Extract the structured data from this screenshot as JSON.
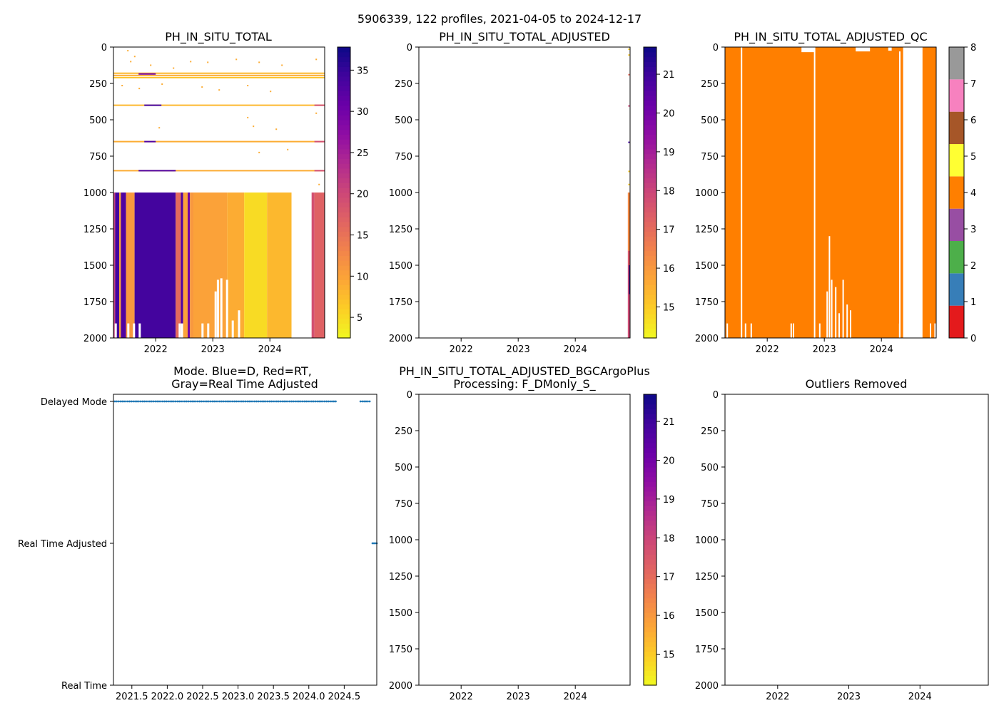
{
  "figure": {
    "suptitle": "5906339, 122 profiles, 2021-04-05 to 2024-12-17"
  },
  "chart_data": [
    {
      "id": "p1",
      "type": "heatmap",
      "title": "PH_IN_SITU_TOTAL",
      "xlim": [
        2021.26,
        2024.96
      ],
      "ylim": [
        2000,
        0
      ],
      "xticks": [
        2022,
        2023,
        2024
      ],
      "xtick_labels": [
        "2022",
        "2023",
        "2024"
      ],
      "yticks": [
        0,
        250,
        500,
        750,
        1000,
        1250,
        1500,
        1750,
        2000
      ],
      "ytick_labels": [
        "0",
        "250",
        "500",
        "750",
        "1000",
        "1250",
        "1500",
        "1750",
        "2000"
      ],
      "colormap": "plasma_r",
      "colorbar": {
        "min": 2.5,
        "max": 37.8,
        "ticks": [
          5,
          10,
          15,
          20,
          25,
          30,
          35
        ],
        "tick_labels": [
          "5",
          "10",
          "15",
          "20",
          "25",
          "30",
          "35"
        ]
      },
      "deep_blocks": [
        {
          "x0": 2021.26,
          "x1": 2021.29,
          "value": 21
        },
        {
          "x0": 2021.29,
          "x1": 2021.36,
          "value": 34
        },
        {
          "x0": 2021.36,
          "x1": 2021.39,
          "value": 10
        },
        {
          "x0": 2021.39,
          "x1": 2021.48,
          "value": 33
        },
        {
          "x0": 2021.48,
          "x1": 2021.63,
          "value": 11
        },
        {
          "x0": 2021.63,
          "x1": 2022.35,
          "value": 34
        },
        {
          "x0": 2022.35,
          "x1": 2022.44,
          "value": 16
        },
        {
          "x0": 2022.44,
          "x1": 2022.48,
          "value": 33
        },
        {
          "x0": 2022.48,
          "x1": 2022.56,
          "value": 10
        },
        {
          "x0": 2022.56,
          "x1": 2022.6,
          "value": 30
        },
        {
          "x0": 2022.6,
          "x1": 2022.66,
          "value": 11
        },
        {
          "x0": 2022.66,
          "x1": 2023.25,
          "value": 10
        },
        {
          "x0": 2023.25,
          "x1": 2023.55,
          "value": 9
        },
        {
          "x0": 2023.55,
          "x1": 2023.95,
          "value": 5
        },
        {
          "x0": 2023.95,
          "x1": 2024.38,
          "value": 8
        },
        {
          "x0": 2024.73,
          "x1": 2024.78,
          "value": 19
        },
        {
          "x0": 2024.78,
          "x1": 2024.96,
          "value": 17
        }
      ],
      "deep_gaps": [
        {
          "x": 2021.3,
          "top": 1900,
          "bottom": 2000
        },
        {
          "x": 2021.52,
          "top": 1900,
          "bottom": 2000
        },
        {
          "x": 2021.62,
          "top": 1900,
          "bottom": 2000
        },
        {
          "x": 2021.72,
          "top": 1900,
          "bottom": 2000
        },
        {
          "x": 2022.42,
          "top": 1900,
          "bottom": 2000
        },
        {
          "x": 2022.46,
          "top": 1900,
          "bottom": 2000
        },
        {
          "x": 2022.82,
          "top": 1900,
          "bottom": 2000
        },
        {
          "x": 2022.92,
          "top": 1900,
          "bottom": 2000
        },
        {
          "x": 2023.05,
          "top": 1680,
          "bottom": 2000
        },
        {
          "x": 2023.09,
          "top": 1600,
          "bottom": 2000
        },
        {
          "x": 2023.15,
          "top": 1590,
          "bottom": 2000
        },
        {
          "x": 2023.25,
          "top": 1600,
          "bottom": 2000
        },
        {
          "x": 2023.35,
          "top": 1880,
          "bottom": 2000
        },
        {
          "x": 2023.46,
          "top": 1810,
          "bottom": 2000
        }
      ],
      "surface_gap": {
        "x0": 2024.38,
        "x1": 2024.73,
        "top": 1000,
        "bottom": 2000
      },
      "bands": [
        {
          "depth": 180,
          "value": 8
        },
        {
          "depth": 195,
          "value": 9
        },
        {
          "depth": 210,
          "value": 7
        },
        {
          "depth": 400,
          "value": 8
        },
        {
          "depth": 650,
          "value": 9
        },
        {
          "depth": 850,
          "value": 9
        }
      ],
      "band_highlights": [
        {
          "depth": 185,
          "x0": 2021.7,
          "x1": 2022.0,
          "value": 30
        },
        {
          "depth": 400,
          "x0": 2021.8,
          "x1": 2022.1,
          "value": 34
        },
        {
          "depth": 650,
          "x0": 2021.8,
          "x1": 2022.0,
          "value": 33
        },
        {
          "depth": 850,
          "x0": 2021.7,
          "x1": 2022.35,
          "value": 33
        },
        {
          "depth": 400,
          "x0": 2024.78,
          "x1": 2024.96,
          "value": 19
        },
        {
          "depth": 650,
          "x0": 2024.78,
          "x1": 2024.96,
          "value": 19
        },
        {
          "depth": 850,
          "x0": 2024.78,
          "x1": 2024.96,
          "value": 19
        }
      ],
      "scatter_points": [
        {
          "x": 2021.5,
          "y": 20
        },
        {
          "x": 2021.62,
          "y": 60
        },
        {
          "x": 2021.55,
          "y": 95
        },
        {
          "x": 2021.9,
          "y": 120
        },
        {
          "x": 2022.6,
          "y": 95
        },
        {
          "x": 2022.3,
          "y": 140
        },
        {
          "x": 2022.9,
          "y": 100
        },
        {
          "x": 2023.4,
          "y": 80
        },
        {
          "x": 2023.8,
          "y": 100
        },
        {
          "x": 2024.2,
          "y": 120
        },
        {
          "x": 2021.4,
          "y": 260
        },
        {
          "x": 2021.7,
          "y": 280
        },
        {
          "x": 2022.1,
          "y": 250
        },
        {
          "x": 2022.8,
          "y": 270
        },
        {
          "x": 2023.1,
          "y": 290
        },
        {
          "x": 2023.6,
          "y": 260
        },
        {
          "x": 2024.0,
          "y": 300
        },
        {
          "x": 2024.8,
          "y": 80
        },
        {
          "x": 2024.8,
          "y": 450
        },
        {
          "x": 2023.6,
          "y": 480
        },
        {
          "x": 2022.05,
          "y": 550
        },
        {
          "x": 2024.1,
          "y": 560
        },
        {
          "x": 2023.7,
          "y": 540
        },
        {
          "x": 2024.3,
          "y": 700
        },
        {
          "x": 2023.8,
          "y": 720
        },
        {
          "x": 2024.85,
          "y": 940
        }
      ]
    },
    {
      "id": "p2",
      "type": "heatmap",
      "title": "PH_IN_SITU_TOTAL_ADJUSTED",
      "xlim": [
        2021.26,
        2024.96
      ],
      "ylim": [
        2000,
        0
      ],
      "xticks": [
        2022,
        2023,
        2024
      ],
      "xtick_labels": [
        "2022",
        "2023",
        "2024"
      ],
      "yticks": [
        0,
        250,
        500,
        750,
        1000,
        1250,
        1500,
        1750,
        2000
      ],
      "ytick_labels": [
        "0",
        "250",
        "500",
        "750",
        "1000",
        "1250",
        "1500",
        "1750",
        "2000"
      ],
      "colormap": "plasma_r",
      "colorbar": {
        "min": 14.2,
        "max": 21.7,
        "ticks": [
          15,
          16,
          17,
          18,
          19,
          20,
          21
        ],
        "tick_labels": [
          "15",
          "16",
          "17",
          "18",
          "19",
          "20",
          "21"
        ]
      },
      "columns": [
        {
          "x0": 2024.92,
          "x1": 2024.96,
          "top": 1000,
          "bottom": 1400,
          "value": 16.3
        },
        {
          "x0": 2024.92,
          "x1": 2024.96,
          "top": 1400,
          "bottom": 1500,
          "value": 17.5
        },
        {
          "x0": 2024.94,
          "x1": 2024.96,
          "top": 1500,
          "bottom": 1700,
          "value": 21.5
        },
        {
          "x0": 2024.92,
          "x1": 2024.94,
          "top": 1500,
          "bottom": 2000,
          "value": 17.8
        },
        {
          "x0": 2024.94,
          "x1": 2024.96,
          "top": 1700,
          "bottom": 2000,
          "value": 18
        }
      ],
      "scatter_points": [
        {
          "x": 2024.94,
          "y": 10,
          "value": 15
        },
        {
          "x": 2024.94,
          "y": 50,
          "value": 15
        },
        {
          "x": 2024.94,
          "y": 185,
          "value": 17
        },
        {
          "x": 2024.94,
          "y": 400,
          "value": 18
        },
        {
          "x": 2024.94,
          "y": 650,
          "value": 21
        },
        {
          "x": 2024.94,
          "y": 850,
          "value": 15
        },
        {
          "x": 2024.94,
          "y": 940,
          "value": 15
        }
      ]
    },
    {
      "id": "p3",
      "type": "heatmap",
      "title": "PH_IN_SITU_TOTAL_ADJUSTED_QC",
      "xlim": [
        2021.26,
        2024.96
      ],
      "ylim": [
        2000,
        0
      ],
      "xticks": [
        2022,
        2023,
        2024
      ],
      "xtick_labels": [
        "2022",
        "2023",
        "2024"
      ],
      "yticks": [
        0,
        250,
        500,
        750,
        1000,
        1250,
        1500,
        1750,
        2000
      ],
      "ytick_labels": [
        "0",
        "250",
        "500",
        "750",
        "1000",
        "1250",
        "1500",
        "1750",
        "2000"
      ],
      "fill_value": 4,
      "fill_x0": 2021.26,
      "fill_x1": 2024.96,
      "gaps": [
        {
          "x": 2021.55,
          "top": 0,
          "bottom": 2000
        },
        {
          "x": 2022.83,
          "top": 0,
          "bottom": 2000
        },
        {
          "x": 2021.3,
          "top": 1900,
          "bottom": 2000
        },
        {
          "x": 2021.62,
          "top": 1900,
          "bottom": 2000
        },
        {
          "x": 2021.72,
          "top": 1900,
          "bottom": 2000
        },
        {
          "x": 2022.42,
          "top": 1900,
          "bottom": 2000
        },
        {
          "x": 2022.46,
          "top": 1900,
          "bottom": 2000
        },
        {
          "x": 2022.92,
          "top": 1900,
          "bottom": 2000
        },
        {
          "x": 2023.05,
          "top": 1680,
          "bottom": 2000
        },
        {
          "x": 2023.09,
          "top": 1300,
          "bottom": 2000
        },
        {
          "x": 2023.13,
          "top": 1600,
          "bottom": 2000
        },
        {
          "x": 2023.2,
          "top": 1650,
          "bottom": 2000
        },
        {
          "x": 2023.26,
          "top": 1830,
          "bottom": 2000
        },
        {
          "x": 2023.33,
          "top": 1600,
          "bottom": 2000
        },
        {
          "x": 2023.4,
          "top": 1770,
          "bottom": 2000
        },
        {
          "x": 2023.46,
          "top": 1810,
          "bottom": 2000
        },
        {
          "x": 2024.32,
          "top": 1900,
          "bottom": 2000
        },
        {
          "x": 2024.86,
          "top": 1900,
          "bottom": 2000
        },
        {
          "x": 2024.94,
          "top": 1900,
          "bottom": 2000
        }
      ],
      "gap_blocks": [
        {
          "x0": 2024.38,
          "x1": 2024.72,
          "top": 0,
          "bottom": 2000
        },
        {
          "x0": 2024.31,
          "x1": 2024.33,
          "top": 30,
          "bottom": 2000
        }
      ],
      "top_notches": [
        {
          "x0": 2022.6,
          "x1": 2022.82,
          "depth": 35
        },
        {
          "x0": 2023.55,
          "x1": 2023.8,
          "depth": 30
        },
        {
          "x0": 2024.12,
          "x1": 2024.18,
          "depth": 25
        }
      ],
      "colorbar": {
        "type": "discrete",
        "colors": [
          "#e41a1c",
          "#377eb8",
          "#4daf4a",
          "#984ea3",
          "#ff7f00",
          "#ffff33",
          "#a65628",
          "#f781bf",
          "#999999"
        ],
        "ticks": [
          0,
          1,
          2,
          3,
          4,
          5,
          6,
          7,
          8
        ],
        "tick_labels": [
          "0",
          "1",
          "2",
          "3",
          "4",
          "5",
          "6",
          "7",
          "8"
        ]
      }
    },
    {
      "id": "p4",
      "type": "scatter",
      "title": "Mode. Blue=D, Red=RT,\nGray=Real Time Adjusted",
      "title_lines": [
        "Mode. Blue=D, Red=RT,",
        "Gray=Real Time Adjusted"
      ],
      "xlim": [
        2021.24,
        2024.96
      ],
      "ylim": [
        0,
        2
      ],
      "xticks": [
        2021.5,
        2022.0,
        2022.5,
        2023.0,
        2023.5,
        2024.0,
        2024.5
      ],
      "xtick_labels": [
        "2021.5",
        "2022.0",
        "2022.5",
        "2023.0",
        "2023.5",
        "2024.0",
        "2024.5"
      ],
      "yticks": [
        0,
        1,
        2
      ],
      "ytick_labels": [
        "Real Time",
        "Real Time Adjusted",
        "Delayed Mode"
      ],
      "series": [
        {
          "name": "Delayed Mode",
          "y": 2,
          "x_start": 2021.26,
          "x_end": 2024.38,
          "step": 0.026
        },
        {
          "name": "Delayed Mode (late)",
          "y": 2,
          "x_start": 2024.73,
          "x_end": 2024.86,
          "step": 0.026
        },
        {
          "name": "Real Time Adjusted",
          "y": 1,
          "x_start": 2024.9,
          "x_end": 2024.96,
          "step": 0.02
        }
      ],
      "marker_color": "#1f77b4"
    },
    {
      "id": "p5",
      "type": "heatmap",
      "title": "PH_IN_SITU_TOTAL_ADJUSTED_BGCArgoPlus\nProcessing: F_DMonly_S_",
      "title_lines": [
        "PH_IN_SITU_TOTAL_ADJUSTED_BGCArgoPlus",
        "Processing: F_DMonly_S_"
      ],
      "xlim": [
        2021.26,
        2024.96
      ],
      "ylim": [
        2000,
        0
      ],
      "xticks": [
        2022,
        2023,
        2024
      ],
      "xtick_labels": [
        "2022",
        "2023",
        "2024"
      ],
      "yticks": [
        0,
        250,
        500,
        750,
        1000,
        1250,
        1500,
        1750,
        2000
      ],
      "ytick_labels": [
        "0",
        "250",
        "500",
        "750",
        "1000",
        "1250",
        "1500",
        "1750",
        "2000"
      ],
      "colormap": "plasma_r",
      "colorbar": {
        "min": 14.2,
        "max": 21.7,
        "ticks": [
          15,
          16,
          17,
          18,
          19,
          20,
          21
        ],
        "tick_labels": [
          "15",
          "16",
          "17",
          "18",
          "19",
          "20",
          "21"
        ]
      }
    },
    {
      "id": "p6",
      "type": "heatmap",
      "title": "Outliers Removed",
      "xlim": [
        2021.26,
        2024.96
      ],
      "ylim": [
        2000,
        0
      ],
      "xticks": [
        2022,
        2023,
        2024
      ],
      "xtick_labels": [
        "2022",
        "2023",
        "2024"
      ],
      "yticks": [
        0,
        250,
        500,
        750,
        1000,
        1250,
        1500,
        1750,
        2000
      ],
      "ytick_labels": [
        "0",
        "250",
        "500",
        "750",
        "1000",
        "1250",
        "1500",
        "1750",
        "2000"
      ]
    }
  ]
}
